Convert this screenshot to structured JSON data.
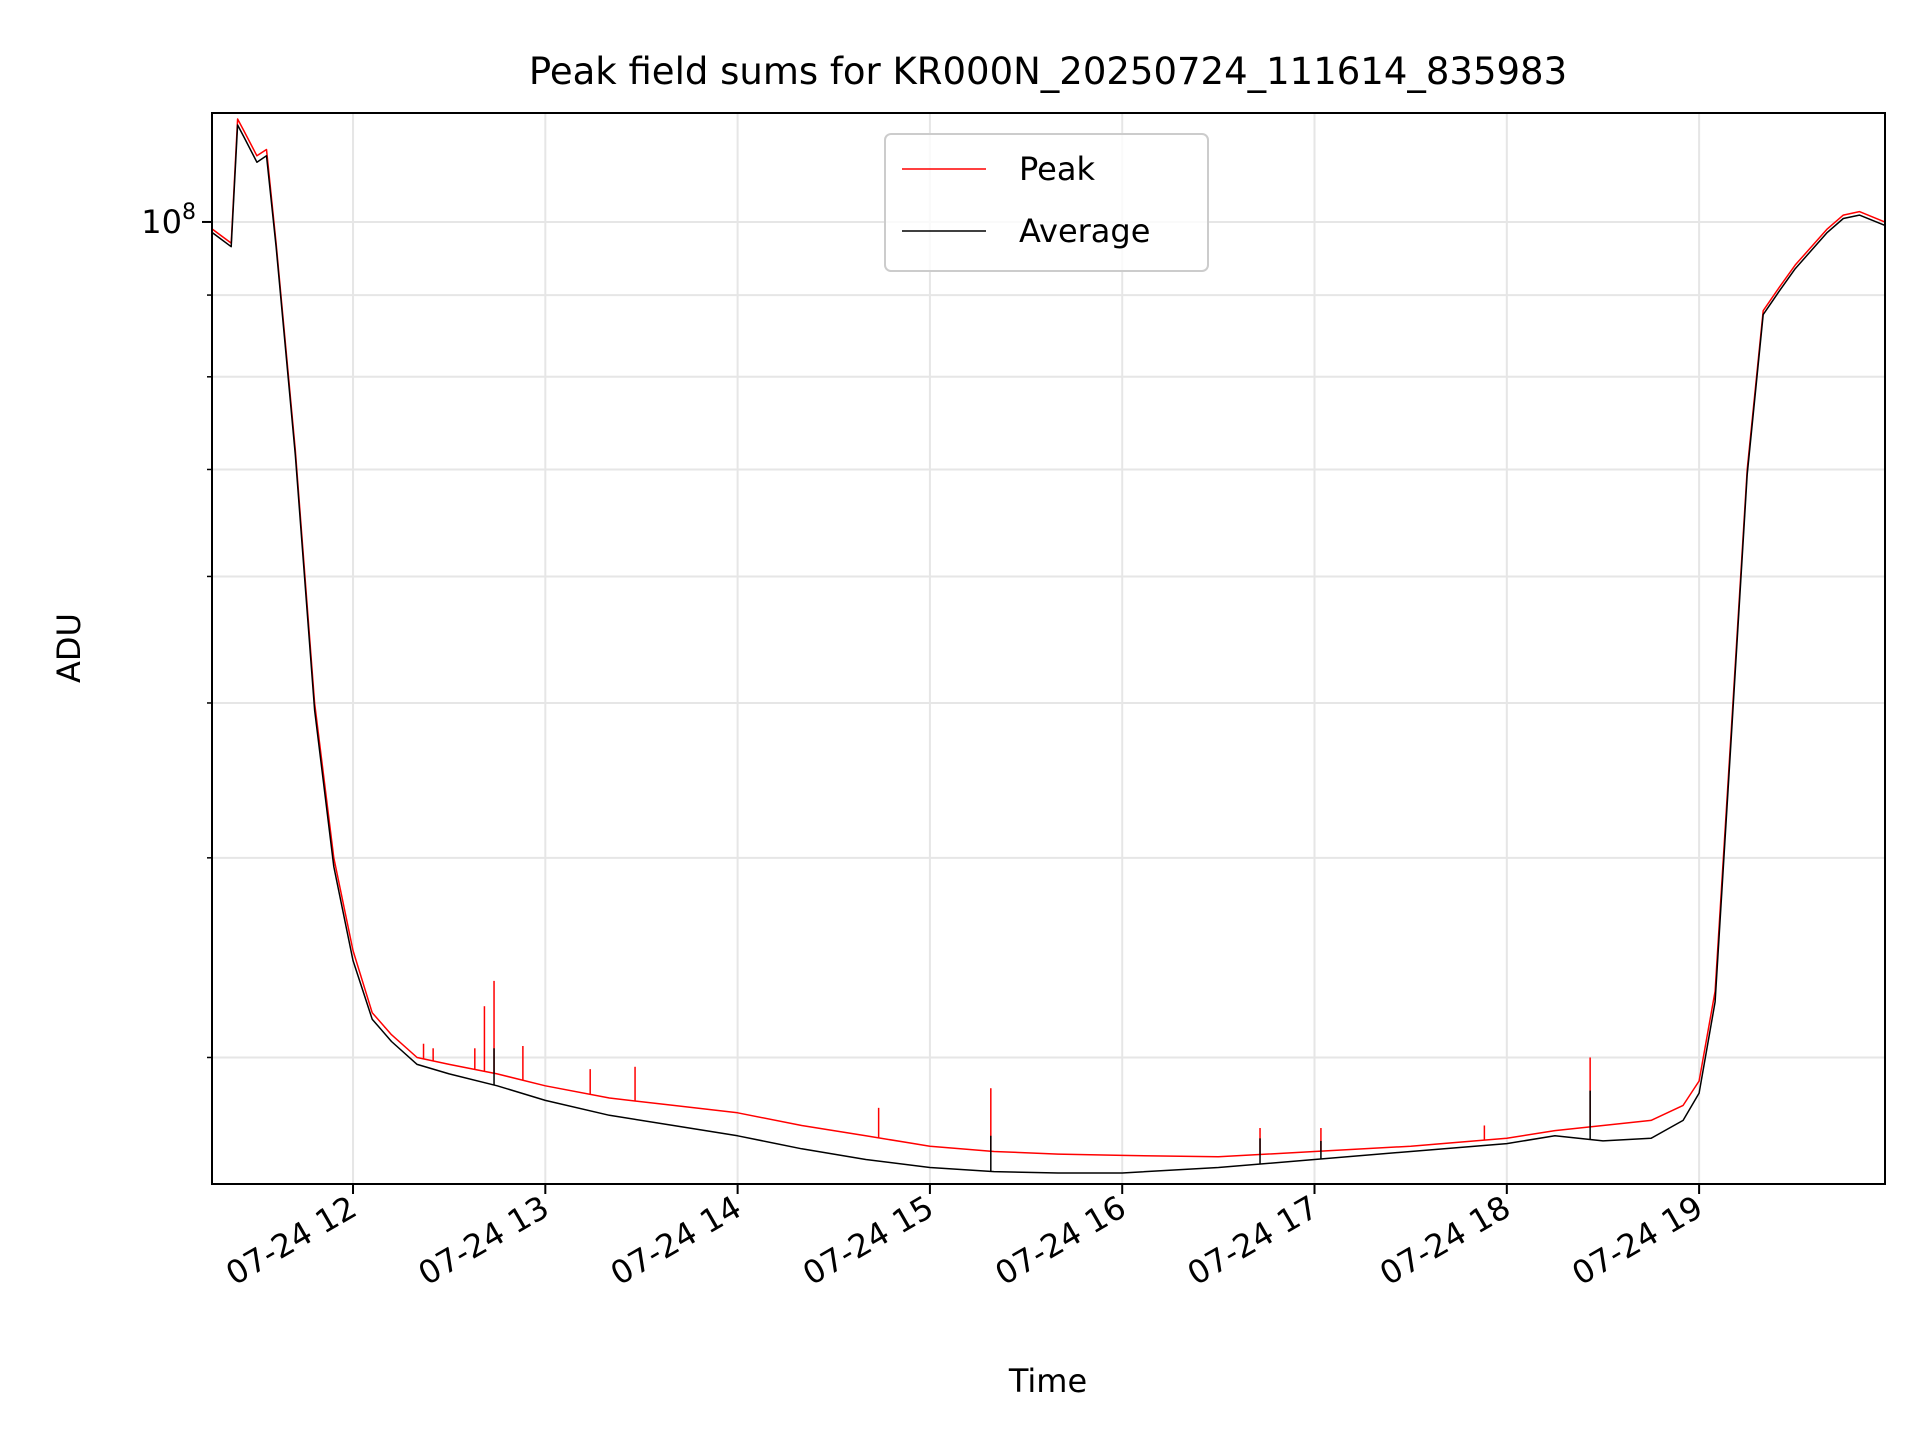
{
  "chart_data": {
    "type": "line",
    "title": "Peak field sums for KR000N_20250724_111614_835983",
    "xlabel": "Time",
    "ylabel": "ADU",
    "xlim": [
      "2025-07-24 11:16",
      "2025-07-24 19:58"
    ],
    "ylim": [
      25000000,
      117000000
    ],
    "y_scale": "log",
    "grid": true,
    "legend": "upper center",
    "x_ticks": [
      {
        "t": "2025-07-24 12:00",
        "label": "07-24 12"
      },
      {
        "t": "2025-07-24 13:00",
        "label": "07-24 13"
      },
      {
        "t": "2025-07-24 14:00",
        "label": "07-24 14"
      },
      {
        "t": "2025-07-24 15:00",
        "label": "07-24 15"
      },
      {
        "t": "2025-07-24 16:00",
        "label": "07-24 16"
      },
      {
        "t": "2025-07-24 17:00",
        "label": "07-24 17"
      },
      {
        "t": "2025-07-24 18:00",
        "label": "07-24 18"
      },
      {
        "t": "2025-07-24 19:00",
        "label": "07-24 19"
      }
    ],
    "y_major_ticks": [
      {
        "value": 100000000,
        "base": "10",
        "exp": "8"
      }
    ],
    "y_minor_ticks": [
      30000000,
      40000000,
      50000000,
      60000000,
      70000000,
      80000000,
      90000000
    ],
    "series": [
      {
        "name": "Peak",
        "color": "#ff0000",
        "x": [
          "2025-07-24 11:16",
          "2025-07-24 11:22",
          "2025-07-24 11:24",
          "2025-07-24 11:26",
          "2025-07-24 11:30",
          "2025-07-24 11:33",
          "2025-07-24 11:36",
          "2025-07-24 11:42",
          "2025-07-24 11:48",
          "2025-07-24 11:54",
          "2025-07-24 12:00",
          "2025-07-24 12:06",
          "2025-07-24 12:12",
          "2025-07-24 12:20",
          "2025-07-24 12:30",
          "2025-07-24 12:45",
          "2025-07-24 13:00",
          "2025-07-24 13:20",
          "2025-07-24 13:40",
          "2025-07-24 14:00",
          "2025-07-24 14:20",
          "2025-07-24 14:40",
          "2025-07-24 15:00",
          "2025-07-24 15:20",
          "2025-07-24 15:40",
          "2025-07-24 16:00",
          "2025-07-24 16:30",
          "2025-07-24 17:00",
          "2025-07-24 17:30",
          "2025-07-24 18:00",
          "2025-07-24 18:15",
          "2025-07-24 18:30",
          "2025-07-24 18:45",
          "2025-07-24 18:55",
          "2025-07-24 19:00",
          "2025-07-24 19:05",
          "2025-07-24 19:10",
          "2025-07-24 19:15",
          "2025-07-24 19:20",
          "2025-07-24 19:25",
          "2025-07-24 19:30",
          "2025-07-24 19:40",
          "2025-07-24 19:45",
          "2025-07-24 19:50",
          "2025-07-24 19:58"
        ],
        "y": [
          99000000,
          97000000,
          116000000,
          114000000,
          110000000,
          111000000,
          97000000,
          72000000,
          50000000,
          40000000,
          35000000,
          32000000,
          31000000,
          30000000,
          29700000,
          29300000,
          28800000,
          28300000,
          28000000,
          27700000,
          27200000,
          26800000,
          26400000,
          26200000,
          26100000,
          26050000,
          26000000,
          26200000,
          26400000,
          26700000,
          27000000,
          27200000,
          27400000,
          28000000,
          29000000,
          33000000,
          48000000,
          70000000,
          88000000,
          91000000,
          94000000,
          99000000,
          101000000,
          101500000,
          100000000
        ],
        "spikes": [
          {
            "t": "2025-07-24 12:10",
            "y": 31300000
          },
          {
            "t": "2025-07-24 12:22",
            "y": 30600000
          },
          {
            "t": "2025-07-24 12:25",
            "y": 30400000
          },
          {
            "t": "2025-07-24 12:38",
            "y": 30400000
          },
          {
            "t": "2025-07-24 12:41",
            "y": 32300000
          },
          {
            "t": "2025-07-24 12:44",
            "y": 33500000
          },
          {
            "t": "2025-07-24 12:53",
            "y": 30500000
          },
          {
            "t": "2025-07-24 13:14",
            "y": 29500000
          },
          {
            "t": "2025-07-24 13:28",
            "y": 29600000
          },
          {
            "t": "2025-07-24 14:44",
            "y": 27900000
          },
          {
            "t": "2025-07-24 15:19",
            "y": 28700000
          },
          {
            "t": "2025-07-24 16:43",
            "y": 27100000
          },
          {
            "t": "2025-07-24 17:02",
            "y": 27100000
          },
          {
            "t": "2025-07-24 17:53",
            "y": 27200000
          },
          {
            "t": "2025-07-24 18:26",
            "y": 30000000
          }
        ]
      },
      {
        "name": "Average",
        "color": "#000000",
        "x": [
          "2025-07-24 11:16",
          "2025-07-24 11:22",
          "2025-07-24 11:24",
          "2025-07-24 11:26",
          "2025-07-24 11:30",
          "2025-07-24 11:33",
          "2025-07-24 11:36",
          "2025-07-24 11:42",
          "2025-07-24 11:48",
          "2025-07-24 11:54",
          "2025-07-24 12:00",
          "2025-07-24 12:06",
          "2025-07-24 12:12",
          "2025-07-24 12:20",
          "2025-07-24 12:30",
          "2025-07-24 12:45",
          "2025-07-24 13:00",
          "2025-07-24 13:20",
          "2025-07-24 13:40",
          "2025-07-24 14:00",
          "2025-07-24 14:20",
          "2025-07-24 14:40",
          "2025-07-24 15:00",
          "2025-07-24 15:20",
          "2025-07-24 15:40",
          "2025-07-24 16:00",
          "2025-07-24 16:30",
          "2025-07-24 17:00",
          "2025-07-24 17:30",
          "2025-07-24 18:00",
          "2025-07-24 18:15",
          "2025-07-24 18:30",
          "2025-07-24 18:45",
          "2025-07-24 18:55",
          "2025-07-24 19:00",
          "2025-07-24 19:05",
          "2025-07-24 19:10",
          "2025-07-24 19:15",
          "2025-07-24 19:20",
          "2025-07-24 19:25",
          "2025-07-24 19:30",
          "2025-07-24 19:40",
          "2025-07-24 19:45",
          "2025-07-24 19:50",
          "2025-07-24 19:58"
        ],
        "y": [
          98500000,
          96500000,
          115000000,
          113000000,
          109000000,
          110000000,
          96500000,
          71500000,
          49500000,
          39500000,
          34500000,
          31700000,
          30700000,
          29700000,
          29300000,
          28800000,
          28200000,
          27600000,
          27200000,
          26800000,
          26300000,
          25900000,
          25600000,
          25450000,
          25400000,
          25400000,
          25600000,
          25900000,
          26200000,
          26500000,
          26800000,
          26600000,
          26700000,
          27400000,
          28500000,
          32500000,
          47500000,
          69500000,
          87500000,
          90500000,
          93500000,
          98500000,
          100500000,
          101000000,
          99500000
        ],
        "spikes": [
          {
            "t": "2025-07-24 12:44",
            "y": 30400000
          },
          {
            "t": "2025-07-24 15:19",
            "y": 26800000
          },
          {
            "t": "2025-07-24 16:43",
            "y": 26700000
          },
          {
            "t": "2025-07-24 17:02",
            "y": 26600000
          },
          {
            "t": "2025-07-24 18:26",
            "y": 28600000
          }
        ]
      }
    ]
  }
}
